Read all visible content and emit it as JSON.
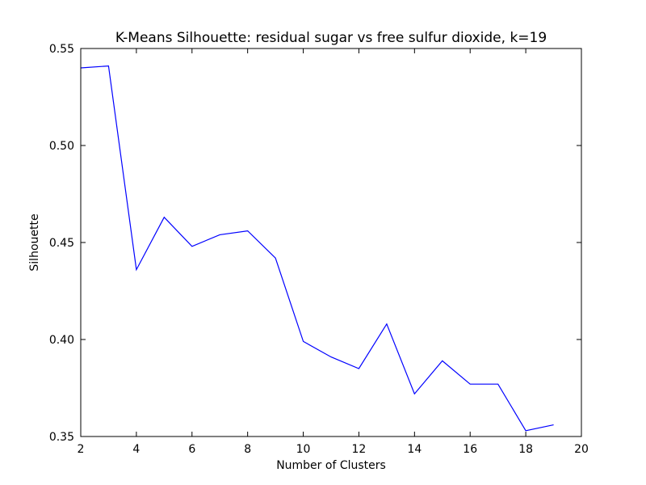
{
  "chart_data": {
    "type": "line",
    "title": "K-Means Silhouette: residual sugar vs free sulfur dioxide, k=19",
    "xlabel": "Number of Clusters",
    "ylabel": "Silhouette",
    "xlim": [
      2,
      20
    ],
    "ylim": [
      0.35,
      0.55
    ],
    "xticks": [
      "2",
      "4",
      "6",
      "8",
      "10",
      "12",
      "14",
      "16",
      "18",
      "20"
    ],
    "yticks": [
      "0.35",
      "0.40",
      "0.45",
      "0.50",
      "0.55"
    ],
    "grid": false,
    "line_color": "#0000ff",
    "series": [
      {
        "x": [
          2,
          3,
          4,
          5,
          6,
          7,
          8,
          9,
          10,
          11,
          12,
          13,
          14,
          15,
          16,
          17,
          18,
          19
        ],
        "values": [
          0.54,
          0.541,
          0.436,
          0.463,
          0.448,
          0.454,
          0.456,
          0.442,
          0.399,
          0.391,
          0.385,
          0.408,
          0.372,
          0.389,
          0.377,
          0.377,
          0.353,
          0.356
        ]
      }
    ]
  }
}
